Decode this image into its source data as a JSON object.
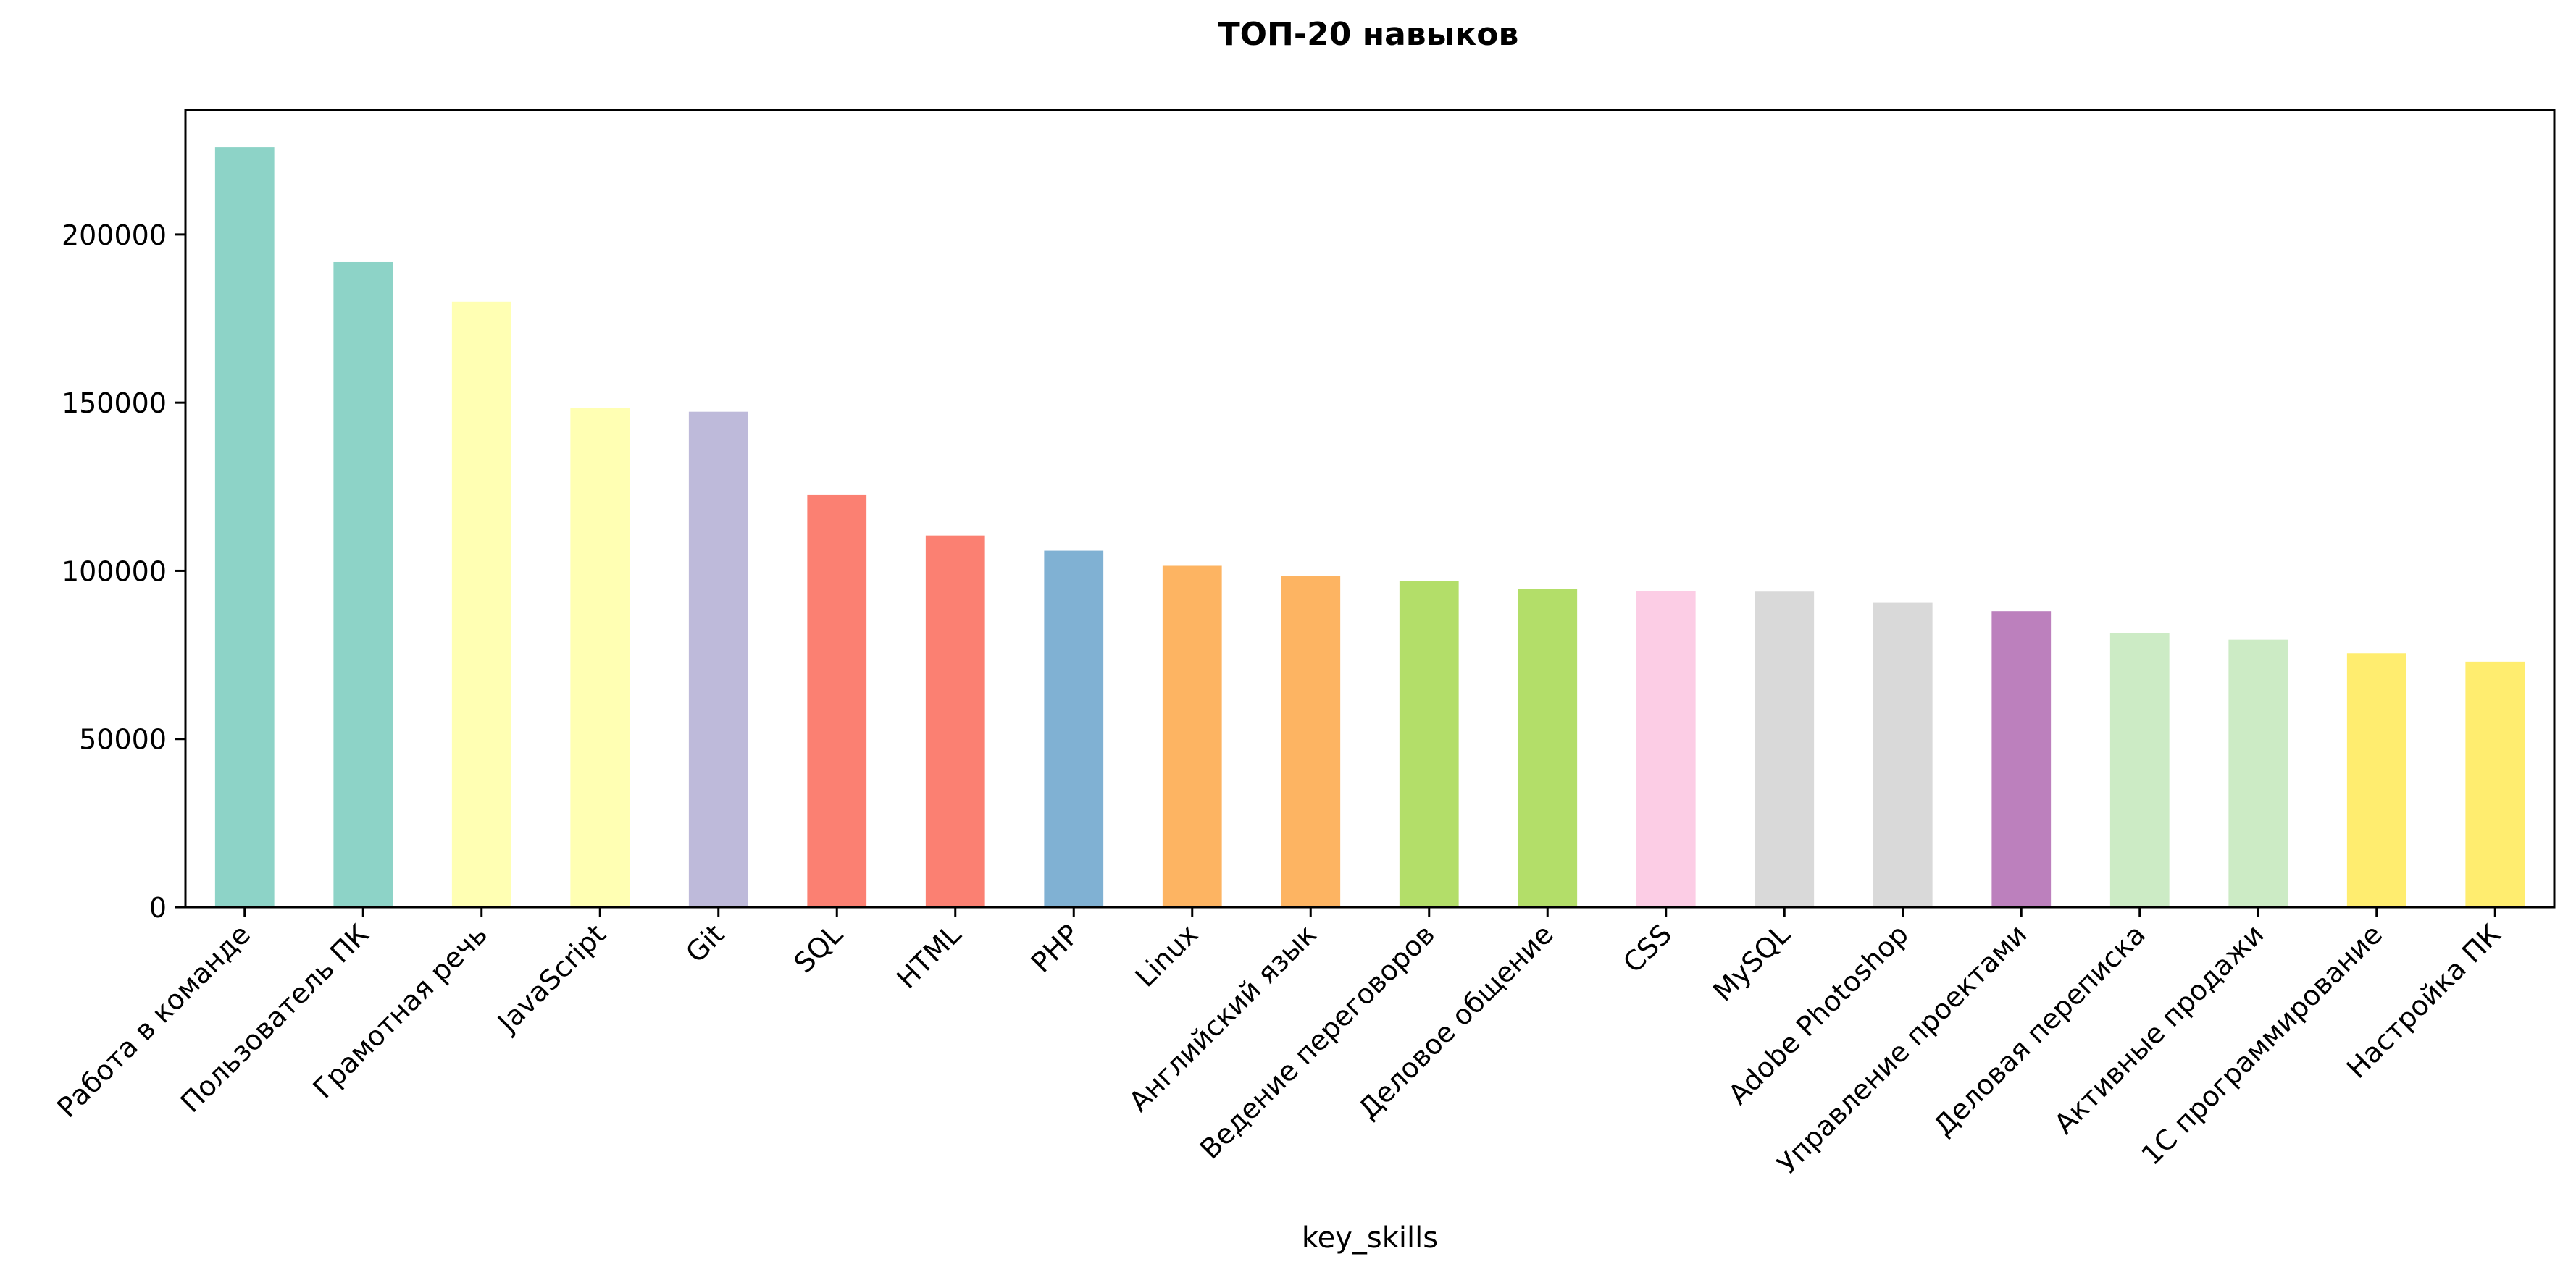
{
  "chart_data": {
    "type": "bar",
    "title": "ТОП-20 навыков",
    "xlabel": "key_skills",
    "ylabel": "",
    "ylim": [
      0,
      237000
    ],
    "yticks": [
      0,
      50000,
      100000,
      150000,
      200000
    ],
    "ytick_labels": [
      "0",
      "50000",
      "100000",
      "150000",
      "200000"
    ],
    "grid": false,
    "legend": "none",
    "categories": [
      "Работа в команде",
      "Пользователь ПК",
      "Грамотная речь",
      "JavaScript",
      "Git",
      "SQL",
      "HTML",
      "PHP",
      "Linux",
      "Английский язык",
      "Ведение переговоров",
      "Деловое общение",
      "CSS",
      "MySQL",
      "Adobe Photoshop",
      "Управление проектами",
      "Деловая переписка",
      "Активные продажи",
      "1С программирование",
      "Настройка ПК"
    ],
    "values": [
      226000,
      191800,
      180000,
      148500,
      147300,
      122500,
      110500,
      106000,
      101500,
      98500,
      97000,
      94500,
      94000,
      93800,
      90500,
      88000,
      81500,
      79500,
      75500,
      73000
    ],
    "colors": [
      "#8dd3c7",
      "#8dd3c7",
      "#ffffb3",
      "#ffffb3",
      "#bebada",
      "#fb8072",
      "#fb8072",
      "#80b1d3",
      "#fdb462",
      "#fdb462",
      "#b3de69",
      "#b3de69",
      "#fccde5",
      "#d9d9d9",
      "#d9d9d9",
      "#bc80bd",
      "#ccebc5",
      "#ccebc5",
      "#ffed6f",
      "#ffed6f"
    ]
  }
}
